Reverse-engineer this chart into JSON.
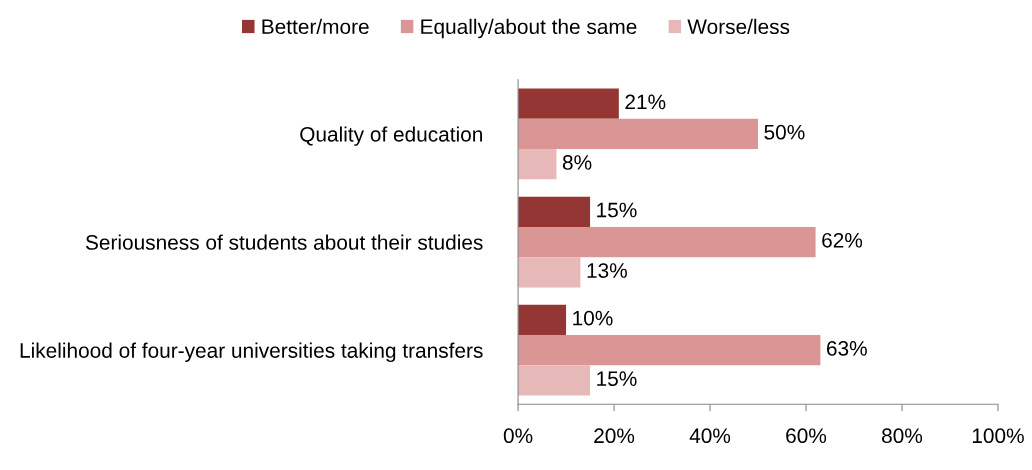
{
  "chart_data": {
    "type": "bar",
    "orientation": "horizontal",
    "categories": [
      "Quality of education",
      "Seriousness of students about their studies",
      "Likelihood of four-year universities taking transfers"
    ],
    "series": [
      {
        "name": "Better/more",
        "color": "#943634",
        "values": [
          21,
          15,
          10
        ],
        "value_labels": [
          "21%",
          "15%",
          "10%"
        ]
      },
      {
        "name": "Equally/about the same",
        "color": "#d99694",
        "values": [
          50,
          62,
          63
        ],
        "value_labels": [
          "50%",
          "62%",
          "63%"
        ]
      },
      {
        "name": "Worse/less",
        "color": "#e6b9b8",
        "values": [
          8,
          13,
          15
        ],
        "value_labels": [
          "8%",
          "13%",
          "15%"
        ]
      }
    ],
    "xlim": [
      0,
      100
    ],
    "xticks": [
      {
        "value": 0,
        "label": "0%"
      },
      {
        "value": 20,
        "label": "20%"
      },
      {
        "value": 40,
        "label": "40%"
      },
      {
        "value": 60,
        "label": "60%"
      },
      {
        "value": 80,
        "label": "80%"
      },
      {
        "value": 100,
        "label": "100%"
      }
    ],
    "grid": false,
    "legend": "top"
  }
}
